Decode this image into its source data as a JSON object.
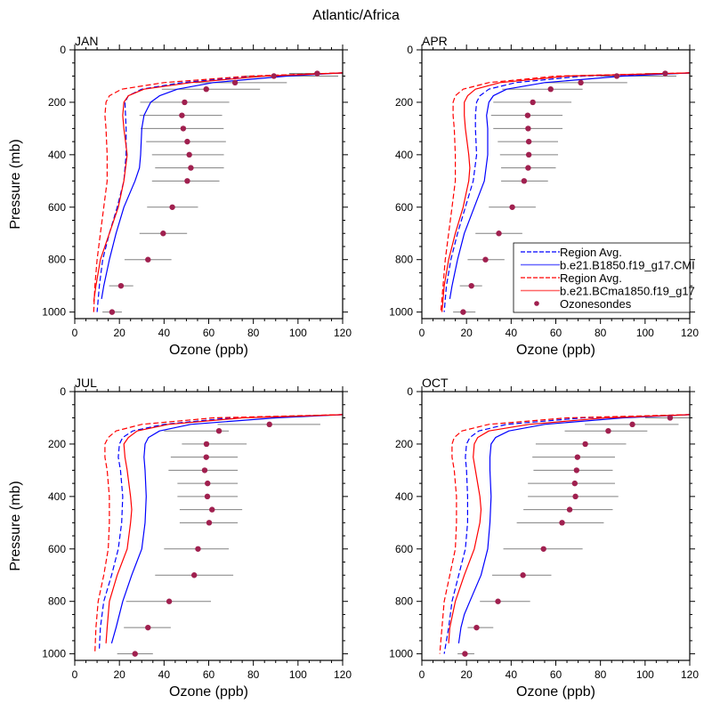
{
  "figure": {
    "title": "Atlantic/Africa"
  },
  "legend": {
    "entries": [
      {
        "label": "Region Avg.",
        "color": "#0000ff",
        "style": "dashed"
      },
      {
        "label": "b.e21.B1850.f19_g17.CMI",
        "color": "#0000ff",
        "style": "solid"
      },
      {
        "label": "Region Avg.",
        "color": "#ff0000",
        "style": "dashed"
      },
      {
        "label": "b.e21.BCma1850.f19_g17",
        "color": "#ff0000",
        "style": "solid"
      },
      {
        "label": "Ozonesondes",
        "color": "#a0204f",
        "style": "marker"
      }
    ]
  },
  "colors": {
    "blue": "#0000ff",
    "red": "#ff0000",
    "sonde": "#a0204f",
    "errorbar": "#808080"
  },
  "chart_data": [
    {
      "type": "line",
      "panel": "JAN",
      "title": "JAN",
      "xlabel": "Ozone (ppb)",
      "ylabel": "Pressure (mb)",
      "xlim": [
        0,
        120
      ],
      "ylim": [
        1025,
        0
      ],
      "xticks": [
        0,
        20,
        40,
        60,
        80,
        100,
        120
      ],
      "yticks": [
        0,
        200,
        400,
        600,
        800,
        1000
      ],
      "grid": false,
      "series": [
        {
          "name": "b.e21.B1850.f19_g17.CMI",
          "style": "solid",
          "color": "#0000ff",
          "p": [
            88,
            100,
            125,
            150,
            175,
            200,
            250,
            300,
            400,
            450,
            500,
            600,
            700,
            800,
            900,
            950
          ],
          "o": [
            120,
            95,
            62,
            46,
            38,
            34,
            31,
            30,
            29.5,
            29,
            27,
            22,
            18.5,
            15.5,
            13,
            12
          ]
        },
        {
          "name": "Region Avg. (blue)",
          "style": "dashed",
          "color": "#0000ff",
          "p": [
            88,
            100,
            125,
            150,
            175,
            200,
            300,
            400,
            500,
            600,
            700,
            800,
            900,
            1000
          ],
          "o": [
            120,
            80,
            48,
            30,
            24,
            22.5,
            23,
            23,
            22,
            19,
            15.5,
            12.5,
            11,
            10
          ]
        },
        {
          "name": "b.e21.BCma1850.f19_g17",
          "style": "solid",
          "color": "#ff0000",
          "p": [
            88,
            100,
            125,
            150,
            175,
            200,
            250,
            300,
            400,
            500,
            600,
            700,
            800,
            900,
            960
          ],
          "o": [
            120,
            85,
            52,
            31,
            24,
            22,
            21.5,
            22,
            23.5,
            22,
            19.5,
            15.5,
            11.5,
            9.5,
            8.5
          ]
        },
        {
          "name": "Region Avg. (red)",
          "style": "dashed",
          "color": "#ff0000",
          "p": [
            88,
            100,
            125,
            150,
            175,
            200,
            250,
            300,
            400,
            500,
            600,
            700,
            800,
            900,
            1000
          ],
          "o": [
            120,
            78,
            40,
            21,
            15.5,
            14,
            13.5,
            14,
            14.5,
            14.5,
            13,
            11.5,
            10,
            9,
            8.5
          ]
        }
      ],
      "sondes": {
        "p": [
          90,
          100,
          125,
          150,
          200,
          250,
          300,
          350,
          400,
          450,
          500,
          600,
          700,
          800,
          900,
          1000
        ],
        "mean": [
          108.6,
          89.2,
          71.8,
          58.9,
          49.2,
          48.0,
          48.6,
          50.4,
          51.3,
          52.0,
          50.4,
          43.7,
          39.6,
          32.8,
          20.7,
          16.7
        ],
        "low": [
          96,
          76,
          54,
          39,
          29.3,
          29,
          29.5,
          32,
          34.6,
          36,
          34.6,
          32.4,
          29,
          22.3,
          15.4,
          12.4
        ],
        "high": [
          120,
          118,
          95,
          83,
          69.2,
          66,
          66.7,
          67.7,
          66.8,
          66.8,
          64.8,
          55.2,
          50.3,
          43.3,
          26.2,
          21.1
        ]
      }
    },
    {
      "type": "line",
      "panel": "APR",
      "title": "APR",
      "xlabel": "Ozone (ppb)",
      "ylabel": "",
      "xlim": [
        0,
        120
      ],
      "ylim": [
        1025,
        0
      ],
      "xticks": [
        0,
        20,
        40,
        60,
        80,
        100,
        120
      ],
      "yticks": [
        0,
        200,
        400,
        600,
        800,
        1000
      ],
      "grid": false,
      "series": [
        {
          "name": "b.e21.B1850.f19_g17.CMI",
          "style": "solid",
          "color": "#0000ff",
          "p": [
            88,
            100,
            125,
            150,
            175,
            200,
            250,
            300,
            400,
            500,
            600,
            700,
            800,
            900,
            950
          ],
          "o": [
            120,
            90,
            55,
            38,
            32,
            30,
            29,
            29.5,
            29.5,
            28,
            23.5,
            19,
            16,
            13.5,
            12.5
          ]
        },
        {
          "name": "Region Avg. (blue)",
          "style": "dashed",
          "color": "#0000ff",
          "p": [
            88,
            100,
            125,
            150,
            175,
            200,
            250,
            300,
            400,
            500,
            600,
            700,
            800,
            900,
            1000
          ],
          "o": [
            120,
            72,
            42,
            30,
            26,
            24.5,
            24,
            24,
            24.5,
            23,
            19.5,
            16,
            13,
            11,
            10
          ]
        },
        {
          "name": "b.e21.BCma1850.f19_g17",
          "style": "solid",
          "color": "#ff0000",
          "p": [
            88,
            100,
            125,
            150,
            175,
            200,
            250,
            300,
            400,
            450,
            500,
            600,
            700,
            800,
            900,
            1000
          ],
          "o": [
            120,
            65,
            35,
            24,
            20.5,
            19,
            19,
            19.5,
            21,
            21.5,
            21,
            18.5,
            15,
            12,
            10,
            9
          ]
        },
        {
          "name": "Region Avg. (red)",
          "style": "dashed",
          "color": "#ff0000",
          "p": [
            88,
            100,
            125,
            150,
            175,
            200,
            250,
            300,
            400,
            500,
            600,
            700,
            800,
            900,
            1000
          ],
          "o": [
            120,
            60,
            30,
            18.5,
            15,
            14,
            14,
            14.5,
            15,
            15,
            13.5,
            12,
            10.5,
            9.5,
            8.5
          ]
        }
      ],
      "sondes": {
        "p": [
          90,
          100,
          125,
          150,
          200,
          250,
          300,
          350,
          400,
          450,
          500,
          600,
          700,
          800,
          900,
          1000
        ],
        "mean": [
          109,
          87.3,
          71.2,
          57.7,
          49.7,
          47.4,
          47.6,
          47.9,
          47.9,
          47.6,
          45.8,
          40.5,
          34.5,
          28.5,
          22.2,
          18.5
        ],
        "low": [
          100,
          80,
          55,
          36,
          32,
          31,
          32,
          34,
          35,
          35.5,
          35.5,
          30,
          24,
          20.5,
          17,
          14
        ],
        "high": [
          120,
          114,
          92,
          72,
          67,
          63,
          63,
          61,
          61,
          60,
          56.5,
          51,
          45,
          37,
          27,
          24
        ]
      }
    },
    {
      "type": "line",
      "panel": "JUL",
      "title": "JUL",
      "xlabel": "Ozone (ppb)",
      "ylabel": "Pressure (mb)",
      "xlim": [
        0,
        120
      ],
      "ylim": [
        1025,
        0
      ],
      "xticks": [
        0,
        20,
        40,
        60,
        80,
        100,
        120
      ],
      "yticks": [
        0,
        200,
        400,
        600,
        800,
        1000
      ],
      "grid": false,
      "series": [
        {
          "name": "b.e21.B1850.f19_g17.CMI",
          "style": "solid",
          "color": "#0000ff",
          "p": [
            88,
            100,
            125,
            150,
            175,
            200,
            250,
            300,
            400,
            500,
            600,
            700,
            800,
            900,
            960
          ],
          "o": [
            120,
            90,
            52,
            38,
            33,
            31.5,
            31,
            31.5,
            32,
            31.5,
            30,
            25.5,
            21.5,
            18.5,
            16.5
          ]
        },
        {
          "name": "Region Avg. (blue)",
          "style": "dashed",
          "color": "#0000ff",
          "p": [
            88,
            100,
            125,
            150,
            175,
            200,
            250,
            300,
            400,
            500,
            600,
            700,
            800,
            900,
            980
          ],
          "o": [
            120,
            70,
            40,
            26,
            21.5,
            20,
            19.5,
            20.5,
            21.5,
            21,
            19.5,
            16.5,
            13,
            11.5,
            11
          ]
        },
        {
          "name": "b.e21.BCma1850.f19_g17",
          "style": "solid",
          "color": "#ff0000",
          "p": [
            88,
            100,
            125,
            150,
            175,
            200,
            250,
            300,
            400,
            450,
            500,
            600,
            700,
            800,
            900,
            960
          ],
          "o": [
            120,
            75,
            42,
            28,
            24,
            22,
            22.5,
            23.5,
            25,
            25.5,
            25,
            23.5,
            19,
            15.5,
            14.5,
            14
          ]
        },
        {
          "name": "Region Avg. (red)",
          "style": "dashed",
          "color": "#ff0000",
          "p": [
            88,
            100,
            125,
            150,
            175,
            200,
            250,
            300,
            400,
            500,
            600,
            700,
            800,
            900,
            1000
          ],
          "o": [
            120,
            62,
            30,
            18.5,
            15,
            13.5,
            13.5,
            14.5,
            15.5,
            15.5,
            15,
            13,
            10.5,
            9.5,
            9
          ]
        }
      ],
      "sondes": {
        "p": [
          125,
          150,
          200,
          250,
          300,
          350,
          400,
          450,
          500,
          600,
          700,
          800,
          900,
          1000
        ],
        "mean": [
          87.2,
          64.6,
          59.0,
          58.9,
          58.2,
          59.5,
          59.4,
          61.5,
          60.2,
          55.2,
          53.5,
          42.3,
          32.8,
          27.0
        ],
        "low": [
          64,
          40,
          48,
          43,
          42,
          46,
          46,
          47,
          47,
          40,
          36,
          23,
          22,
          19
        ],
        "high": [
          110,
          69,
          77,
          73,
          73,
          73,
          73,
          75,
          73,
          69,
          71,
          61,
          43,
          35
        ]
      }
    },
    {
      "type": "line",
      "panel": "OCT",
      "title": "OCT",
      "xlabel": "Ozone (ppb)",
      "ylabel": "",
      "xlim": [
        0,
        120
      ],
      "ylim": [
        1025,
        0
      ],
      "xticks": [
        0,
        20,
        40,
        60,
        80,
        100,
        120
      ],
      "yticks": [
        0,
        200,
        400,
        600,
        800,
        1000
      ],
      "grid": false,
      "series": [
        {
          "name": "b.e21.B1850.f19_g17.CMI",
          "style": "solid",
          "color": "#0000ff",
          "p": [
            88,
            100,
            125,
            150,
            175,
            200,
            250,
            300,
            400,
            500,
            600,
            700,
            800,
            850,
            900,
            960
          ],
          "o": [
            120,
            90,
            55,
            39,
            33,
            31,
            30.5,
            30.5,
            31,
            30.5,
            29.5,
            26.5,
            21.5,
            19,
            17.5,
            16.5
          ]
        },
        {
          "name": "Region Avg. (blue)",
          "style": "dashed",
          "color": "#0000ff",
          "p": [
            88,
            100,
            125,
            150,
            175,
            200,
            250,
            300,
            400,
            500,
            600,
            700,
            800,
            900,
            1000
          ],
          "o": [
            120,
            72,
            38,
            25.5,
            21.5,
            20,
            19.5,
            20,
            20.5,
            20.5,
            19.5,
            16.5,
            13.5,
            12,
            10
          ]
        },
        {
          "name": "b.e21.BCma1850.f19_g17",
          "style": "solid",
          "color": "#ff0000",
          "p": [
            88,
            100,
            125,
            150,
            175,
            200,
            250,
            300,
            400,
            450,
            500,
            600,
            700,
            800,
            900,
            960
          ],
          "o": [
            120,
            82,
            48,
            30,
            25,
            23.5,
            23,
            24,
            26,
            26.5,
            26,
            23.5,
            19,
            15,
            12.5,
            12
          ]
        },
        {
          "name": "Region Avg. (red)",
          "style": "dashed",
          "color": "#ff0000",
          "p": [
            88,
            100,
            125,
            150,
            175,
            200,
            250,
            300,
            400,
            500,
            600,
            700,
            800,
            900,
            1000
          ],
          "o": [
            120,
            65,
            30,
            18,
            14.5,
            13.5,
            13.5,
            14.5,
            15.5,
            15.5,
            15,
            12.5,
            10,
            9,
            8
          ]
        }
      ],
      "sondes": {
        "p": [
          100,
          125,
          150,
          200,
          250,
          300,
          350,
          400,
          450,
          500,
          600,
          700,
          800,
          900,
          1000
        ],
        "mean": [
          111.2,
          94.3,
          83.5,
          73.2,
          69.7,
          69.3,
          68.5,
          68.8,
          66.2,
          62.8,
          54.5,
          45.3,
          34.1,
          24.5,
          19.3
        ],
        "low": [
          100,
          73,
          64,
          51,
          49.5,
          50,
          47.5,
          47.5,
          45.5,
          42.5,
          36.5,
          31.5,
          26,
          20.5,
          16
        ],
        "high": [
          120,
          115,
          101,
          91.5,
          86.5,
          85.5,
          86.5,
          88,
          85.5,
          81.5,
          72,
          58,
          48.5,
          32,
          23.5
        ]
      }
    }
  ]
}
